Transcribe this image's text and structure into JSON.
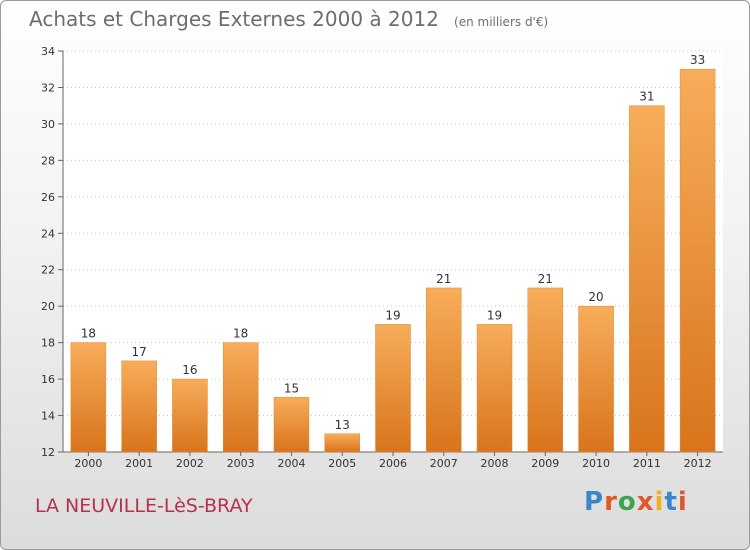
{
  "header": {
    "title": "Achats et Charges Externes 2000 à 2012",
    "unit": "(en milliers d'€)"
  },
  "footer": {
    "commune": "LA NEUVILLE-LèS-BRAY",
    "logo": "Proxiti",
    "logo_colors": [
      "#3a86c8",
      "#e0572a",
      "#3aa54a",
      "#e0572a",
      "#f2b01e",
      "#3a86c8",
      "#e0572a"
    ]
  },
  "colors": {
    "bar": "#f09a3e",
    "bar_light": "#f7ad5a",
    "bar_dark": "#d8741c",
    "axis": "#666666",
    "grid": "#c8c8c8"
  },
  "chart_data": {
    "type": "bar",
    "categories": [
      "2000",
      "2001",
      "2002",
      "2003",
      "2004",
      "2005",
      "2006",
      "2007",
      "2008",
      "2009",
      "2010",
      "2011",
      "2012"
    ],
    "values": [
      18,
      17,
      16,
      18,
      15,
      13,
      19,
      21,
      19,
      21,
      20,
      31,
      33
    ],
    "ylim": [
      12,
      34
    ],
    "yticks": [
      12,
      14,
      16,
      18,
      20,
      22,
      24,
      26,
      28,
      30,
      32,
      34
    ],
    "grid": true,
    "legend": "none"
  }
}
